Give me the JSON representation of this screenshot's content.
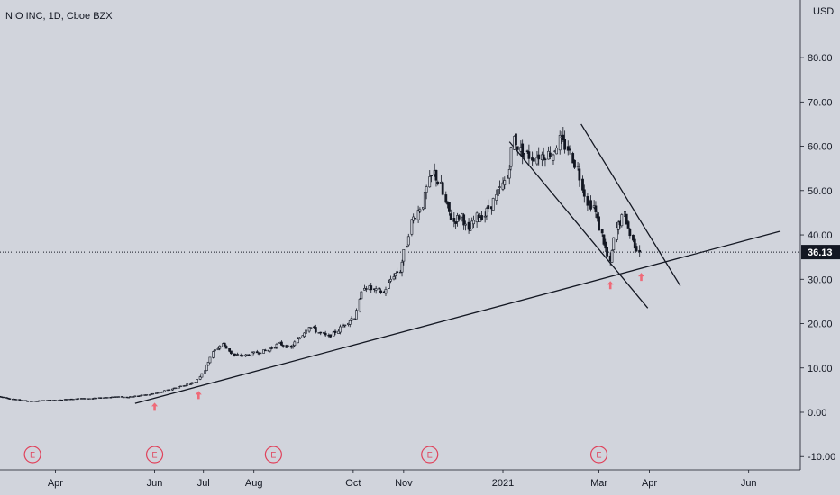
{
  "chart_data": {
    "type": "candlestick",
    "title": "NIO INC, 1D, Cboe BZX",
    "currency": "USD",
    "y_ticks": [
      "-10.00",
      "0.00",
      "10.00",
      "20.00",
      "30.00",
      "40.00",
      "50.00",
      "60.00",
      "70.00",
      "80.00"
    ],
    "y_tick_values": [
      -10,
      0,
      10,
      20,
      30,
      40,
      50,
      60,
      70,
      80
    ],
    "ylim": [
      -13,
      92
    ],
    "x_ticks": [
      "Apr",
      "Jun",
      "Jul",
      "Aug",
      "Oct",
      "Nov",
      "2021",
      "Mar",
      "Apr",
      "Jun"
    ],
    "x_tick_dates": [
      "2020-04-01",
      "2020-06-01",
      "2020-07-01",
      "2020-08-01",
      "2020-10-01",
      "2020-11-01",
      "2021-01-01",
      "2021-03-01",
      "2021-04-01",
      "2021-06-01"
    ],
    "xlim": [
      "2020-02-27",
      "2021-06-20"
    ],
    "last_price": 36.13,
    "last_price_label": "36.13",
    "grid": false,
    "legend": "none",
    "series": [
      {
        "points": [
          [
            "2020-02-27",
            3.6,
            3.5
          ],
          [
            "2020-03-06",
            3.2,
            3.0
          ],
          [
            "2020-03-13",
            2.7,
            2.6
          ],
          [
            "2020-03-20",
            2.4,
            2.5
          ],
          [
            "2020-03-27",
            2.6,
            2.7
          ],
          [
            "2020-04-03",
            2.8,
            2.7
          ],
          [
            "2020-04-10",
            2.9,
            3.0
          ],
          [
            "2020-04-17",
            3.0,
            3.1
          ],
          [
            "2020-04-24",
            3.2,
            3.1
          ],
          [
            "2020-05-01",
            3.1,
            3.3
          ],
          [
            "2020-05-08",
            3.4,
            3.5
          ],
          [
            "2020-05-15",
            3.5,
            3.4
          ],
          [
            "2020-05-22",
            3.5,
            3.7
          ],
          [
            "2020-05-29",
            3.7,
            4.0
          ],
          [
            "2020-06-05",
            4.2,
            4.5
          ],
          [
            "2020-06-12",
            4.8,
            5.3
          ],
          [
            "2020-06-19",
            5.6,
            6.0
          ],
          [
            "2020-06-26",
            6.1,
            6.8
          ],
          [
            "2020-07-02",
            7.8,
            9.5
          ],
          [
            "2020-07-07",
            11.0,
            13.5
          ],
          [
            "2020-07-13",
            14.5,
            15.5
          ],
          [
            "2020-07-20",
            14.0,
            12.8
          ],
          [
            "2020-07-27",
            12.3,
            12.8
          ],
          [
            "2020-08-03",
            12.6,
            13.5
          ],
          [
            "2020-08-10",
            13.2,
            14.0
          ],
          [
            "2020-08-17",
            14.3,
            15.5
          ],
          [
            "2020-08-24",
            15.0,
            14.5
          ],
          [
            "2020-08-31",
            15.5,
            17.5
          ],
          [
            "2020-09-04",
            18.0,
            19.5
          ],
          [
            "2020-09-10",
            19.0,
            18.0
          ],
          [
            "2020-09-16",
            18.2,
            17.0
          ],
          [
            "2020-09-22",
            17.5,
            18.5
          ],
          [
            "2020-09-28",
            19.0,
            20.5
          ],
          [
            "2020-10-02",
            21.0,
            21.5
          ],
          [
            "2020-10-08",
            26.5,
            28.5
          ],
          [
            "2020-10-14",
            28.0,
            27.5
          ],
          [
            "2020-10-20",
            27.5,
            27.0
          ],
          [
            "2020-10-26",
            29.0,
            31.0
          ],
          [
            "2020-10-30",
            31.5,
            32.0
          ],
          [
            "2020-11-03",
            35.0,
            38.0
          ],
          [
            "2020-11-06",
            40.0,
            43.0
          ],
          [
            "2020-11-10",
            44.0,
            45.5
          ],
          [
            "2020-11-13",
            44.0,
            47.0
          ],
          [
            "2020-11-17",
            48.0,
            52.0
          ],
          [
            "2020-11-20",
            52.5,
            54.0
          ],
          [
            "2020-11-24",
            53.0,
            51.0
          ],
          [
            "2020-11-27",
            52.0,
            47.0
          ],
          [
            "2020-12-02",
            44.0,
            43.0
          ],
          [
            "2020-12-07",
            42.0,
            44.5
          ],
          [
            "2020-12-11",
            41.5,
            40.5
          ],
          [
            "2020-12-16",
            42.0,
            44.0
          ],
          [
            "2020-12-21",
            45.5,
            44.5
          ],
          [
            "2020-12-28",
            46.5,
            48.5
          ],
          [
            "2021-01-04",
            51.0,
            53.0
          ],
          [
            "2021-01-08",
            57.5,
            62.0
          ],
          [
            "2021-01-12",
            60.0,
            59.0
          ],
          [
            "2021-01-19",
            57.0,
            57.5
          ],
          [
            "2021-01-25",
            59.5,
            58.0
          ],
          [
            "2021-02-01",
            56.0,
            58.5
          ],
          [
            "2021-02-05",
            60.0,
            61.5
          ],
          [
            "2021-02-10",
            62.5,
            59.5
          ],
          [
            "2021-02-16",
            57.5,
            55.0
          ],
          [
            "2021-02-22",
            50.0,
            47.5
          ],
          [
            "2021-02-26",
            44.0,
            46.5
          ],
          [
            "2021-03-03",
            41.5,
            40.0
          ],
          [
            "2021-03-08",
            36.0,
            33.5
          ],
          [
            "2021-03-12",
            38.5,
            41.5
          ],
          [
            "2021-03-17",
            43.5,
            44.5
          ],
          [
            "2021-03-22",
            41.0,
            38.5
          ],
          [
            "2021-03-26",
            36.5,
            36.13
          ]
        ]
      }
    ],
    "annotations": {
      "trendline_support": [
        [
          "2020-05-20",
          2.0
        ],
        [
          "2021-06-20",
          40.8
        ]
      ],
      "channel_upper": [
        [
          "2021-02-18",
          65.0
        ],
        [
          "2021-04-20",
          28.5
        ]
      ],
      "channel_lower": [
        [
          "2021-01-05",
          61.0
        ],
        [
          "2021-03-31",
          23.5
        ]
      ],
      "arrow_dates": [
        "2020-06-01",
        "2020-06-28",
        "2021-03-08",
        "2021-03-27"
      ],
      "arrow_color": "#ef6a78",
      "earnings_marker_label": "E",
      "earnings_dates": [
        "2020-03-18",
        "2020-06-01",
        "2020-08-13",
        "2020-11-17",
        "2021-03-01"
      ]
    },
    "colors": {
      "background": "#d1d4dc",
      "candle": "#131722",
      "text": "#131722",
      "earnings": "#e0415a",
      "price_label_bg": "#131722"
    }
  }
}
